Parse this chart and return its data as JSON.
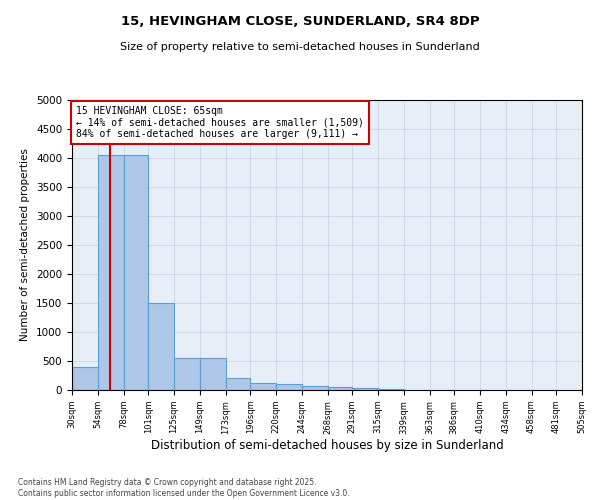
{
  "title1": "15, HEVINGHAM CLOSE, SUNDERLAND, SR4 8DP",
  "title2": "Size of property relative to semi-detached houses in Sunderland",
  "xlabel": "Distribution of semi-detached houses by size in Sunderland",
  "ylabel": "Number of semi-detached properties",
  "property_size": 65,
  "property_label": "15 HEVINGHAM CLOSE: 65sqm",
  "pct_smaller": 14,
  "pct_larger": 84,
  "n_smaller": 1509,
  "n_larger": 9111,
  "bin_edges": [
    30,
    54,
    78,
    101,
    125,
    149,
    173,
    196,
    220,
    244,
    268,
    291,
    315,
    339,
    363,
    386,
    410,
    434,
    458,
    481,
    505
  ],
  "bar_heights": [
    400,
    4050,
    4050,
    1500,
    550,
    550,
    200,
    120,
    100,
    75,
    60,
    30,
    15,
    8,
    5,
    3,
    2,
    1,
    1,
    0
  ],
  "bar_color": "#aec6e8",
  "bar_edge_color": "#5a9fd4",
  "red_line_color": "#cc0000",
  "annotation_box_color": "#cc0000",
  "grid_color": "#d0d8e8",
  "background_color": "#e8eef8",
  "ylim": [
    0,
    5000
  ],
  "yticks": [
    0,
    500,
    1000,
    1500,
    2000,
    2500,
    3000,
    3500,
    4000,
    4500,
    5000
  ],
  "footnote": "Contains HM Land Registry data © Crown copyright and database right 2025.\nContains public sector information licensed under the Open Government Licence v3.0."
}
